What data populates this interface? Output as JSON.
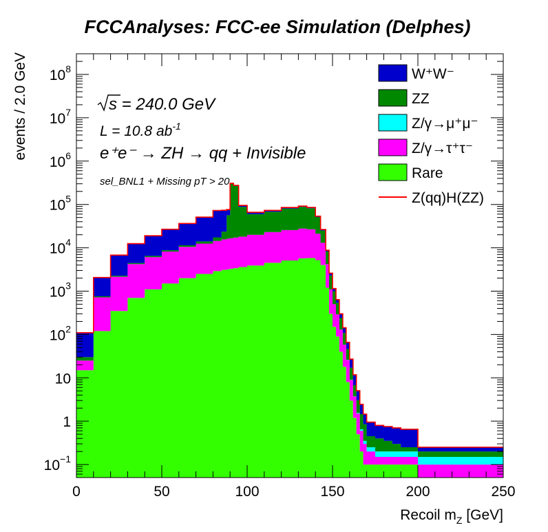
{
  "chart_data": {
    "type": "area",
    "title": "FCCAnalyses: FCC-ee Simulation (Delphes)",
    "xlabel": "Recoil m_Z [GeV]",
    "ylabel": "events / 2.0 GeV",
    "xlim": [
      0,
      250
    ],
    "ylim": [
      0.05,
      300000000
    ],
    "yscale": "log",
    "grid": false,
    "legend_position": "top-right",
    "x_ticks": [
      "0",
      "50",
      "100",
      "150",
      "200",
      "250"
    ],
    "y_ticks": [
      {
        "value": 0.1,
        "mantissa": "10",
        "exp": "−1"
      },
      {
        "value": 1,
        "mantissa": "1",
        "exp": ""
      },
      {
        "value": 10,
        "mantissa": "10",
        "exp": ""
      },
      {
        "value": 100,
        "mantissa": "10",
        "exp": "2"
      },
      {
        "value": 1000,
        "mantissa": "10",
        "exp": "3"
      },
      {
        "value": 10000,
        "mantissa": "10",
        "exp": "4"
      },
      {
        "value": 100000,
        "mantissa": "10",
        "exp": "5"
      },
      {
        "value": 1000000,
        "mantissa": "10",
        "exp": "6"
      },
      {
        "value": 10000000,
        "mantissa": "10",
        "exp": "7"
      },
      {
        "value": 100000000,
        "mantissa": "10",
        "exp": "8"
      }
    ],
    "annotations": {
      "sqrt_s": "s = 240.0 GeV",
      "lumi": "L = 10.8 ab",
      "lumi_exp": "-1",
      "process": "e⁺e⁻ → ZH → qq + Invisible",
      "selection": "sel_BNL1 + Missing pT > 20"
    },
    "x": [
      0,
      10,
      20,
      30,
      40,
      50,
      60,
      70,
      80,
      85,
      88,
      90,
      92,
      95,
      100,
      110,
      120,
      130,
      135,
      140,
      143,
      146,
      148,
      150,
      152,
      154,
      156,
      158,
      160,
      162,
      164,
      166,
      168,
      170,
      175,
      180,
      185,
      190,
      195,
      198,
      200,
      210,
      220,
      230,
      240,
      250
    ],
    "series": [
      {
        "name": "Rare",
        "color": "#33ff00",
        "values": [
          15,
          120,
          350,
          700,
          1100,
          1500,
          2000,
          2500,
          2900,
          3100,
          3200,
          3300,
          3400,
          3600,
          3900,
          4500,
          5100,
          5700,
          5800,
          5200,
          4000,
          1200,
          300,
          150,
          90,
          40,
          18,
          8,
          3,
          1.2,
          0.5,
          0.2,
          0.1,
          0.1,
          0.1,
          0.1,
          0.1,
          0.1,
          0.1,
          0.1,
          0.05,
          0.05,
          0.05,
          0.05,
          0.05,
          0.05
        ]
      },
      {
        "name": "Z/γ→τ⁺τ⁻",
        "color": "#ff00ff",
        "values": [
          10,
          600,
          1800,
          3500,
          5000,
          6700,
          8500,
          10000,
          11500,
          12500,
          13000,
          13400,
          13800,
          14500,
          16000,
          18500,
          20500,
          22000,
          21000,
          16000,
          9000,
          3000,
          800,
          350,
          200,
          90,
          40,
          18,
          6,
          2.5,
          1,
          0.4,
          0.2,
          0.1,
          0.05,
          0.05,
          0.05,
          0.05,
          0.05,
          0.05,
          0.05,
          0.05,
          0.05,
          0.05,
          0.05,
          0.05
        ]
      },
      {
        "name": "Z/γ→μ⁺μ⁻",
        "color": "#00ffff",
        "values": [
          0.05,
          0.05,
          0.05,
          0.05,
          0.05,
          0.05,
          0.05,
          0.05,
          0.05,
          0.05,
          0.05,
          0.05,
          0.05,
          0.05,
          0.05,
          0.05,
          0.05,
          0.05,
          0.05,
          0.05,
          0.05,
          0.05,
          0.05,
          0.05,
          0.05,
          0.05,
          0.05,
          0.05,
          0.05,
          0.05,
          0.05,
          0.05,
          0.05,
          0.05,
          0.05,
          0.05,
          0.05,
          0.05,
          0.05,
          0.05,
          0.05,
          0.05,
          0.05,
          0.05,
          0.05,
          0.05
        ]
      },
      {
        "name": "ZZ",
        "color": "#008800",
        "values": [
          5,
          40,
          120,
          250,
          400,
          600,
          900,
          1500,
          3000,
          8000,
          40000,
          280000,
          250000,
          70000,
          40000,
          45000,
          55000,
          60000,
          55000,
          30000,
          12000,
          4000,
          1200,
          500,
          250,
          110,
          50,
          20,
          8,
          3,
          1.5,
          0.8,
          0.5,
          0.2,
          0.2,
          0.15,
          0.1,
          0.05,
          0.05,
          0.05,
          0.05,
          0.05,
          0.05,
          0.05,
          0.05,
          0.05
        ]
      },
      {
        "name": "W⁺W⁻",
        "color": "#0000cc",
        "values": [
          80,
          1300,
          4500,
          8000,
          12500,
          18000,
          25000,
          37000,
          55000,
          50000,
          20000,
          10000,
          8000,
          7000,
          6000,
          5000,
          4500,
          4000,
          3500,
          2500,
          1500,
          600,
          300,
          150,
          100,
          60,
          35,
          20,
          10,
          5,
          2,
          1,
          0.6,
          0.5,
          0.4,
          0.4,
          0.4,
          0.4,
          0.4,
          0.4,
          0.05,
          0.05,
          0.05,
          0.05,
          0.05,
          0.05
        ]
      },
      {
        "name": "Z(qq)H(ZZ)",
        "color": "#ff0000",
        "line_only": true,
        "values": [
          0.05,
          0.05,
          0.05,
          0.05,
          0.05,
          0.05,
          0.05,
          0.05,
          0.05,
          0.05,
          0.05,
          0.05,
          0.05,
          0.05,
          0.05,
          0.05,
          0.05,
          0.05,
          0.05,
          0.05,
          0.05,
          0.05,
          0.05,
          0.05,
          0.05,
          0.05,
          0.05,
          0.05,
          0.05,
          0.05,
          0.05,
          0.05,
          0.05,
          0.05,
          0.05,
          0.05,
          0.05,
          0.05,
          0.05,
          0.05,
          0.05,
          0.05,
          0.05,
          0.05,
          0.05,
          0.05
        ]
      }
    ],
    "legend": [
      {
        "label": "W⁺W⁻",
        "color": "#0000cc",
        "kind": "box"
      },
      {
        "label": "ZZ",
        "color": "#008800",
        "kind": "box"
      },
      {
        "label": "Z/γ→μ⁺μ⁻",
        "color": "#00ffff",
        "kind": "box"
      },
      {
        "label": "Z/γ→τ⁺τ⁻",
        "color": "#ff00ff",
        "kind": "box"
      },
      {
        "label": "Rare",
        "color": "#33ff00",
        "kind": "box"
      },
      {
        "label": "Z(qq)H(ZZ)",
        "color": "#ff0000",
        "kind": "line"
      }
    ]
  }
}
